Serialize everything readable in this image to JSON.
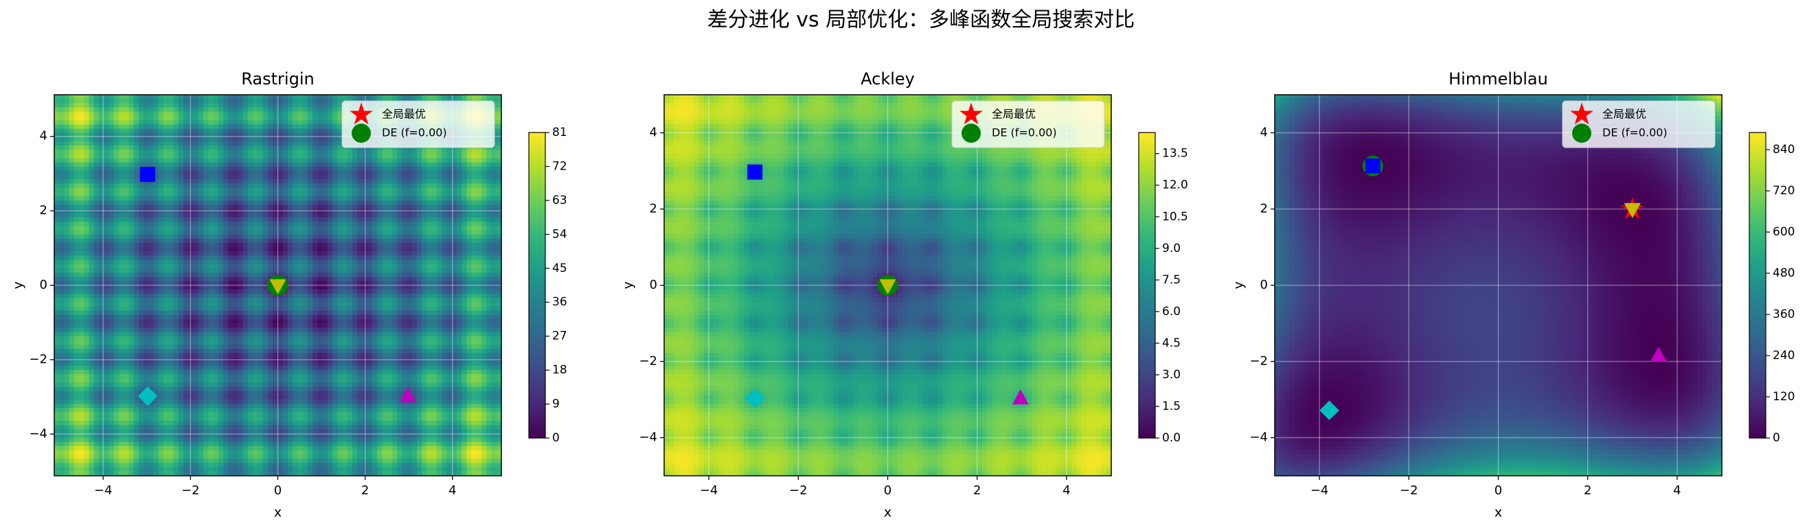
{
  "title": "差分进化 vs 局部优化：多峰函数全局搜索对比",
  "chart_data": [
    {
      "type": "contour",
      "title": "Rastrigin",
      "xlabel": "x",
      "ylabel": "y",
      "xlim": [
        -5.12,
        5.12
      ],
      "ylim": [
        -5.12,
        5.12
      ],
      "xticks": [
        {
          "value": -4,
          "label": "−4"
        },
        {
          "value": -2,
          "label": "−2"
        },
        0,
        2,
        4
      ],
      "yticks": [
        {
          "value": -4,
          "label": "−4"
        },
        {
          "value": -2,
          "label": "−2"
        },
        0,
        2,
        4
      ],
      "grid": true,
      "legend": "upper right",
      "colorbar": {
        "lim": [
          0,
          81
        ],
        "ticks": [
          0,
          9,
          18,
          27,
          36,
          45,
          54,
          63,
          72,
          81
        ]
      },
      "series": [
        {
          "name": "全局最优",
          "marker": "star",
          "color": "#ff0000",
          "x": [
            0
          ],
          "y": [
            0
          ]
        },
        {
          "name": "DE (f=0.00)",
          "marker": "circle",
          "color": "#008000",
          "x": [
            0
          ],
          "y": [
            0
          ]
        },
        {
          "marker": "square",
          "color": "#0000ff",
          "x": [
            -2.98
          ],
          "y": [
            2.98
          ]
        },
        {
          "marker": "diamond",
          "color": "#00bfbf",
          "x": [
            -2.98
          ],
          "y": [
            -2.98
          ]
        },
        {
          "marker": "triangle-up",
          "color": "#bf00bf",
          "x": [
            2.98
          ],
          "y": [
            -2.98
          ]
        },
        {
          "marker": "triangle-down",
          "color": "#bfbf00",
          "x": [
            0
          ],
          "y": [
            0
          ]
        }
      ]
    },
    {
      "type": "contour",
      "title": "Ackley",
      "xlabel": "x",
      "ylabel": "y",
      "xlim": [
        -5,
        5
      ],
      "ylim": [
        -5,
        5
      ],
      "xticks": [
        {
          "value": -4,
          "label": "−4"
        },
        {
          "value": -2,
          "label": "−2"
        },
        0,
        2,
        4
      ],
      "yticks": [
        {
          "value": -4,
          "label": "−4"
        },
        {
          "value": -2,
          "label": "−2"
        },
        0,
        2,
        4
      ],
      "grid": true,
      "legend": "upper right",
      "colorbar": {
        "lim": [
          0,
          14.5
        ],
        "ticks": [
          {
            "value": 0,
            "label": "0.0"
          },
          1.5,
          {
            "value": 3,
            "label": "3.0"
          },
          4.5,
          {
            "value": 6,
            "label": "6.0"
          },
          7.5,
          {
            "value": 9,
            "label": "9.0"
          },
          10.5,
          {
            "value": 12,
            "label": "12.0"
          },
          13.5
        ]
      },
      "series": [
        {
          "name": "全局最优",
          "marker": "star",
          "color": "#ff0000",
          "x": [
            0
          ],
          "y": [
            0
          ]
        },
        {
          "name": "DE (f=0.00)",
          "marker": "circle",
          "color": "#008000",
          "x": [
            0
          ],
          "y": [
            0
          ]
        },
        {
          "marker": "square",
          "color": "#0000ff",
          "x": [
            -2.97
          ],
          "y": [
            2.97
          ]
        },
        {
          "marker": "diamond",
          "color": "#00bfbf",
          "x": [
            -2.97
          ],
          "y": [
            -2.97
          ]
        },
        {
          "marker": "triangle-up",
          "color": "#bf00bf",
          "x": [
            2.97
          ],
          "y": [
            -2.97
          ]
        },
        {
          "marker": "triangle-down",
          "color": "#bfbf00",
          "x": [
            0
          ],
          "y": [
            0
          ]
        }
      ]
    },
    {
      "type": "contour",
      "title": "Himmelblau",
      "xlabel": "x",
      "ylabel": "y",
      "xlim": [
        -5,
        5
      ],
      "ylim": [
        -5,
        5
      ],
      "xticks": [
        {
          "value": -4,
          "label": "−4"
        },
        {
          "value": -2,
          "label": "−2"
        },
        0,
        2,
        4
      ],
      "yticks": [
        {
          "value": -4,
          "label": "−4"
        },
        {
          "value": -2,
          "label": "−2"
        },
        0,
        2,
        4
      ],
      "grid": true,
      "legend": "upper right",
      "colorbar": {
        "lim": [
          0,
          890
        ],
        "ticks": [
          0,
          120,
          240,
          360,
          480,
          600,
          720,
          840
        ]
      },
      "series": [
        {
          "name": "全局最优",
          "marker": "star",
          "color": "#ff0000",
          "x": [
            3
          ],
          "y": [
            2
          ]
        },
        {
          "name": "DE (f=0.00)",
          "marker": "circle",
          "color": "#008000",
          "x": [
            -2.805
          ],
          "y": [
            3.131
          ]
        },
        {
          "marker": "square",
          "color": "#0000ff",
          "x": [
            -2.805
          ],
          "y": [
            3.131
          ]
        },
        {
          "marker": "diamond",
          "color": "#00bfbf",
          "x": [
            -3.779
          ],
          "y": [
            -3.283
          ]
        },
        {
          "marker": "triangle-up",
          "color": "#bf00bf",
          "x": [
            3.584
          ],
          "y": [
            -1.848
          ]
        },
        {
          "marker": "triangle-down",
          "color": "#bfbf00",
          "x": [
            3
          ],
          "y": [
            2
          ]
        }
      ]
    }
  ]
}
